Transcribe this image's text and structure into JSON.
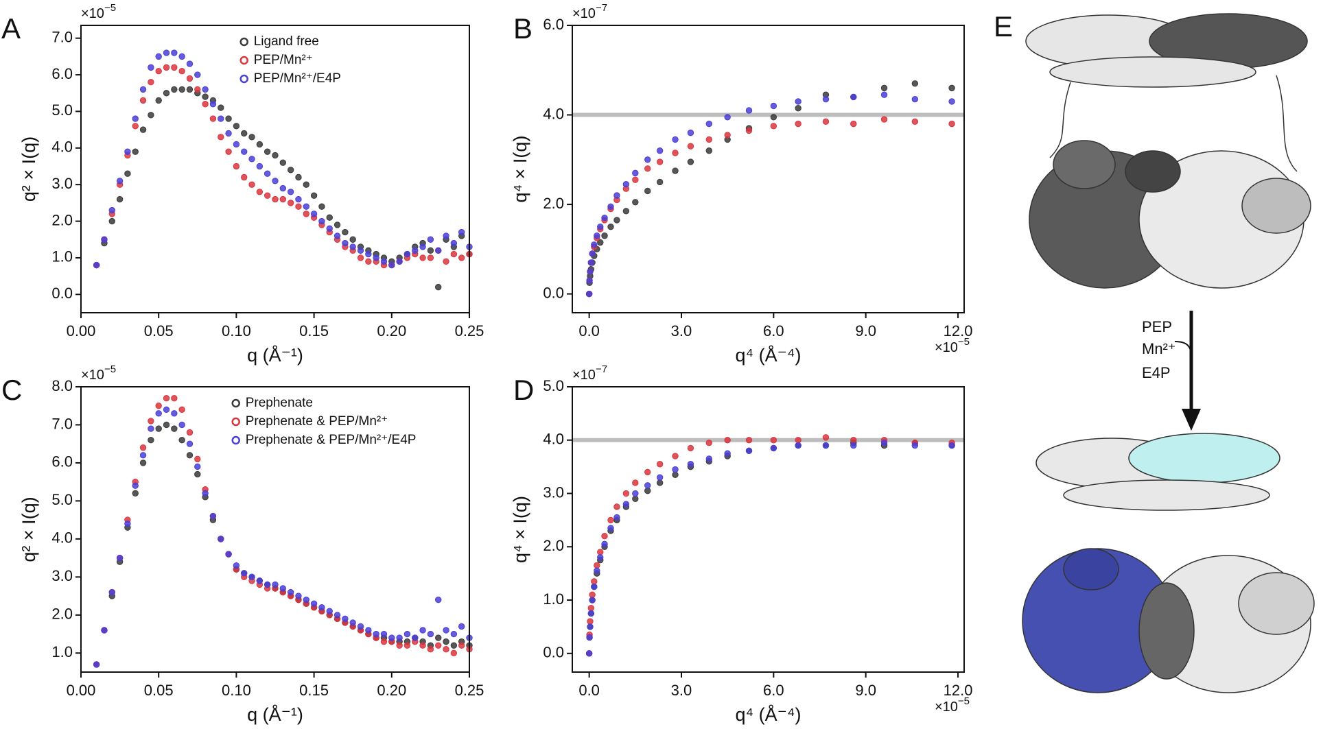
{
  "chart_data": [
    {
      "type": "scatter",
      "panel_label": "A",
      "x_label": "q (Å⁻¹)",
      "y_label": "q² × I(q)",
      "y_multiplier": {
        "base": "×10",
        "exponent": "−5"
      },
      "xlim": [
        0,
        0.25
      ],
      "ylim": [
        -0.5,
        7.35
      ],
      "xticks": [
        {
          "value": 0,
          "label": "0.00"
        },
        {
          "value": 0.05,
          "label": "0.05"
        },
        {
          "value": 0.1,
          "label": "0.10"
        },
        {
          "value": 0.15,
          "label": "0.15"
        },
        {
          "value": 0.2,
          "label": "0.20"
        },
        {
          "value": 0.25,
          "label": "0.25"
        }
      ],
      "yticks": [
        {
          "value": 0,
          "label": "0.0"
        },
        {
          "value": 1,
          "label": "1.0"
        },
        {
          "value": 2,
          "label": "2.0"
        },
        {
          "value": 3,
          "label": "3.0"
        },
        {
          "value": 4,
          "label": "4.0"
        },
        {
          "value": 5,
          "label": "5.0"
        },
        {
          "value": 6,
          "label": "6.0"
        },
        {
          "value": 7,
          "label": "7.0"
        }
      ],
      "legend": "upper center",
      "x": [
        0.01,
        0.015,
        0.02,
        0.025,
        0.03,
        0.035,
        0.04,
        0.045,
        0.05,
        0.055,
        0.06,
        0.065,
        0.07,
        0.075,
        0.08,
        0.085,
        0.09,
        0.095,
        0.1,
        0.105,
        0.11,
        0.115,
        0.12,
        0.125,
        0.13,
        0.135,
        0.14,
        0.145,
        0.15,
        0.155,
        0.16,
        0.165,
        0.17,
        0.175,
        0.18,
        0.185,
        0.19,
        0.195,
        0.2,
        0.205,
        0.21,
        0.215,
        0.22,
        0.225,
        0.23,
        0.235,
        0.24,
        0.245,
        0.25
      ],
      "series": [
        {
          "name": "Ligand free",
          "color": "#3a3a3a",
          "values": [
            0.8,
            1.4,
            2.0,
            2.6,
            3.3,
            3.9,
            4.5,
            4.9,
            5.3,
            5.5,
            5.6,
            5.6,
            5.6,
            5.5,
            5.4,
            5.3,
            5.1,
            4.8,
            4.6,
            4.4,
            4.3,
            4.1,
            3.9,
            3.8,
            3.6,
            3.4,
            3.2,
            3.0,
            2.7,
            2.4,
            2.1,
            1.9,
            1.7,
            1.5,
            1.3,
            1.2,
            1.1,
            1.0,
            0.9,
            1.0,
            1.1,
            1.3,
            1.4,
            1.2,
            0.2,
            1.5,
            1.3,
            1.6,
            1.1
          ]
        },
        {
          "name": "PEP/Mn²⁺",
          "color": "#d9363e",
          "values": [
            0.8,
            1.5,
            2.2,
            3.0,
            3.8,
            4.6,
            5.3,
            5.8,
            6.1,
            6.2,
            6.2,
            6.1,
            5.9,
            5.6,
            5.2,
            4.8,
            4.3,
            3.9,
            3.5,
            3.2,
            3.0,
            2.8,
            2.7,
            2.6,
            2.6,
            2.5,
            2.4,
            2.2,
            2.1,
            1.9,
            1.7,
            1.5,
            1.3,
            1.2,
            1.0,
            0.9,
            0.9,
            0.8,
            0.8,
            0.9,
            1.0,
            1.1,
            1.0,
            1.0,
            1.2,
            0.9,
            1.1,
            1.0,
            1.1
          ]
        },
        {
          "name": "PEP/Mn²⁺/E4P",
          "color": "#4a3fd6",
          "values": [
            0.8,
            1.5,
            2.3,
            3.1,
            3.9,
            4.8,
            5.6,
            6.2,
            6.5,
            6.6,
            6.6,
            6.5,
            6.3,
            6.0,
            5.6,
            5.2,
            4.8,
            4.4,
            4.1,
            3.9,
            3.7,
            3.5,
            3.3,
            3.1,
            2.9,
            2.8,
            2.6,
            2.4,
            2.2,
            2.0,
            1.8,
            1.6,
            1.4,
            1.3,
            1.2,
            1.1,
            1.0,
            0.9,
            0.8,
            0.9,
            1.1,
            1.2,
            1.3,
            1.5,
            1.2,
            1.6,
            1.4,
            1.7,
            1.3
          ]
        }
      ]
    },
    {
      "type": "scatter",
      "panel_label": "B",
      "x_label": "q⁴ (Å⁻⁴)",
      "y_label": "q⁴ × I(q)",
      "y_multiplier": {
        "base": "×10",
        "exponent": "−7"
      },
      "x_multiplier": {
        "base": "×10",
        "exponent": "−5"
      },
      "xlim": [
        -0.55,
        12.2
      ],
      "ylim": [
        -0.42,
        6.0
      ],
      "xticks": [
        {
          "value": 0,
          "label": "0.0"
        },
        {
          "value": 3,
          "label": "3.0"
        },
        {
          "value": 6,
          "label": "6.0"
        },
        {
          "value": 9,
          "label": "9.0"
        },
        {
          "value": 12,
          "label": "12.0"
        }
      ],
      "yticks": [
        {
          "value": 0,
          "label": "0.0"
        },
        {
          "value": 2,
          "label": "2.0"
        },
        {
          "value": 4,
          "label": "4.0"
        },
        {
          "value": 6,
          "label": "6.0"
        }
      ],
      "reference_line": 4.0,
      "x": [
        0,
        0.01,
        0.03,
        0.06,
        0.1,
        0.16,
        0.25,
        0.36,
        0.5,
        0.7,
        0.9,
        1.2,
        1.5,
        1.9,
        2.3,
        2.8,
        3.3,
        3.9,
        4.5,
        5.2,
        6.0,
        6.8,
        7.7,
        8.6,
        9.6,
        10.6,
        11.8
      ],
      "series": [
        {
          "color": "#3a3a3a",
          "values": [
            0,
            0.25,
            0.4,
            0.55,
            0.7,
            0.85,
            1.0,
            1.15,
            1.3,
            1.5,
            1.65,
            1.85,
            2.05,
            2.3,
            2.5,
            2.75,
            2.95,
            3.2,
            3.45,
            3.7,
            3.95,
            4.15,
            4.45,
            4.4,
            4.6,
            4.7,
            4.6
          ]
        },
        {
          "color": "#d9363e",
          "values": [
            0,
            0.3,
            0.5,
            0.7,
            0.9,
            1.05,
            1.25,
            1.45,
            1.65,
            1.9,
            2.1,
            2.35,
            2.55,
            2.8,
            2.95,
            3.15,
            3.3,
            3.45,
            3.55,
            3.65,
            3.75,
            3.8,
            3.85,
            3.8,
            3.9,
            3.85,
            3.8
          ]
        },
        {
          "color": "#4a3fd6",
          "values": [
            0,
            0.3,
            0.5,
            0.7,
            0.9,
            1.1,
            1.3,
            1.5,
            1.7,
            1.95,
            2.2,
            2.45,
            2.7,
            3.0,
            3.2,
            3.45,
            3.6,
            3.8,
            3.95,
            4.1,
            4.2,
            4.3,
            4.35,
            4.4,
            4.45,
            4.35,
            4.3
          ]
        }
      ]
    },
    {
      "type": "scatter",
      "panel_label": "C",
      "x_label": "q (Å⁻¹)",
      "y_label": "q² × I(q)",
      "y_multiplier": {
        "base": "×10",
        "exponent": "−5"
      },
      "xlim": [
        0,
        0.25
      ],
      "ylim": [
        0.5,
        8.0
      ],
      "xticks": [
        {
          "value": 0,
          "label": "0.00"
        },
        {
          "value": 0.05,
          "label": "0.05"
        },
        {
          "value": 0.1,
          "label": "0.10"
        },
        {
          "value": 0.15,
          "label": "0.15"
        },
        {
          "value": 0.2,
          "label": "0.20"
        },
        {
          "value": 0.25,
          "label": "0.25"
        }
      ],
      "yticks": [
        {
          "value": 1,
          "label": "1.0"
        },
        {
          "value": 2,
          "label": "2.0"
        },
        {
          "value": 3,
          "label": "3.0"
        },
        {
          "value": 4,
          "label": "4.0"
        },
        {
          "value": 5,
          "label": "5.0"
        },
        {
          "value": 6,
          "label": "6.0"
        },
        {
          "value": 7,
          "label": "7.0"
        },
        {
          "value": 8,
          "label": "8.0"
        }
      ],
      "legend": "upper center",
      "x": [
        0.01,
        0.015,
        0.02,
        0.025,
        0.03,
        0.035,
        0.04,
        0.045,
        0.05,
        0.055,
        0.06,
        0.065,
        0.07,
        0.075,
        0.08,
        0.085,
        0.09,
        0.095,
        0.1,
        0.105,
        0.11,
        0.115,
        0.12,
        0.125,
        0.13,
        0.135,
        0.14,
        0.145,
        0.15,
        0.155,
        0.16,
        0.165,
        0.17,
        0.175,
        0.18,
        0.185,
        0.19,
        0.195,
        0.2,
        0.205,
        0.21,
        0.215,
        0.22,
        0.225,
        0.23,
        0.235,
        0.24,
        0.245,
        0.25
      ],
      "series": [
        {
          "name": "Prephenate",
          "color": "#3a3a3a",
          "values": [
            0.7,
            1.6,
            2.5,
            3.4,
            4.3,
            5.2,
            6.0,
            6.6,
            6.9,
            7.0,
            6.9,
            6.6,
            6.2,
            5.7,
            5.1,
            4.5,
            4.0,
            3.6,
            3.2,
            3.1,
            3.0,
            2.9,
            2.8,
            2.7,
            2.6,
            2.5,
            2.4,
            2.3,
            2.2,
            2.1,
            2.0,
            1.9,
            1.8,
            1.7,
            1.6,
            1.5,
            1.4,
            1.4,
            1.3,
            1.3,
            1.3,
            1.4,
            1.3,
            1.2,
            1.4,
            1.3,
            1.2,
            1.3,
            1.2
          ]
        },
        {
          "name": "Prephenate & PEP/Mn²⁺",
          "color": "#d9363e",
          "values": [
            0.7,
            1.6,
            2.6,
            3.5,
            4.5,
            5.5,
            6.4,
            7.1,
            7.5,
            7.7,
            7.7,
            7.4,
            6.8,
            6.1,
            5.3,
            4.6,
            4.0,
            3.6,
            3.2,
            3.0,
            2.9,
            2.8,
            2.7,
            2.7,
            2.6,
            2.5,
            2.4,
            2.3,
            2.2,
            2.1,
            2.0,
            1.9,
            1.8,
            1.7,
            1.6,
            1.5,
            1.4,
            1.3,
            1.3,
            1.2,
            1.2,
            1.3,
            1.2,
            1.1,
            1.2,
            1.1,
            1.0,
            1.2,
            1.1
          ]
        },
        {
          "name": "Prephenate & PEP/Mn²⁺/E4P",
          "color": "#4a3fd6",
          "values": [
            0.7,
            1.6,
            2.6,
            3.5,
            4.4,
            5.4,
            6.2,
            6.9,
            7.3,
            7.4,
            7.3,
            7.0,
            6.5,
            5.9,
            5.2,
            4.6,
            4.0,
            3.6,
            3.3,
            3.1,
            3.0,
            2.9,
            2.8,
            2.8,
            2.7,
            2.6,
            2.5,
            2.4,
            2.3,
            2.2,
            2.1,
            2.0,
            1.9,
            1.8,
            1.7,
            1.6,
            1.5,
            1.5,
            1.4,
            1.4,
            1.5,
            1.4,
            1.6,
            1.5,
            2.4,
            1.6,
            1.5,
            1.7,
            1.4
          ]
        }
      ]
    },
    {
      "type": "scatter",
      "panel_label": "D",
      "x_label": "q⁴ (Å⁻⁴)",
      "y_label": "q⁴ × I(q)",
      "y_multiplier": {
        "base": "×10",
        "exponent": "−7"
      },
      "x_multiplier": {
        "base": "×10",
        "exponent": "−5"
      },
      "xlim": [
        -0.55,
        12.2
      ],
      "ylim": [
        -0.35,
        5.0
      ],
      "xticks": [
        {
          "value": 0,
          "label": "0.0"
        },
        {
          "value": 3,
          "label": "3.0"
        },
        {
          "value": 6,
          "label": "6.0"
        },
        {
          "value": 9,
          "label": "9.0"
        },
        {
          "value": 12,
          "label": "12.0"
        }
      ],
      "yticks": [
        {
          "value": 0,
          "label": "0.0"
        },
        {
          "value": 1,
          "label": "1.0"
        },
        {
          "value": 2,
          "label": "2.0"
        },
        {
          "value": 3,
          "label": "3.0"
        },
        {
          "value": 4,
          "label": "4.0"
        },
        {
          "value": 5,
          "label": "5.0"
        }
      ],
      "reference_line": 4.0,
      "x": [
        0,
        0.01,
        0.03,
        0.06,
        0.1,
        0.16,
        0.25,
        0.36,
        0.5,
        0.7,
        0.9,
        1.2,
        1.5,
        1.9,
        2.3,
        2.8,
        3.3,
        3.9,
        4.5,
        5.2,
        6.0,
        6.8,
        7.7,
        8.6,
        9.6,
        10.6,
        11.8
      ],
      "series": [
        {
          "color": "#3a3a3a",
          "values": [
            0,
            0.3,
            0.5,
            0.75,
            1.0,
            1.25,
            1.5,
            1.75,
            2.0,
            2.3,
            2.5,
            2.75,
            2.9,
            3.05,
            3.2,
            3.35,
            3.5,
            3.6,
            3.7,
            3.8,
            3.85,
            3.9,
            3.9,
            3.95,
            3.9,
            3.95,
            3.9
          ]
        },
        {
          "color": "#d9363e",
          "values": [
            0,
            0.35,
            0.6,
            0.85,
            1.1,
            1.35,
            1.65,
            1.9,
            2.2,
            2.5,
            2.75,
            3.0,
            3.2,
            3.4,
            3.55,
            3.7,
            3.85,
            3.95,
            4.0,
            4.0,
            4.0,
            4.0,
            4.05,
            4.0,
            4.0,
            3.95,
            3.95
          ]
        },
        {
          "color": "#4a3fd6",
          "values": [
            0,
            0.3,
            0.5,
            0.75,
            1.0,
            1.25,
            1.55,
            1.8,
            2.05,
            2.35,
            2.55,
            2.8,
            3.0,
            3.15,
            3.3,
            3.45,
            3.55,
            3.65,
            3.75,
            3.8,
            3.85,
            3.9,
            3.9,
            3.9,
            3.95,
            3.9,
            3.9
          ]
        }
      ]
    }
  ],
  "panel_e": {
    "label": "E",
    "arrow_labels": [
      "PEP",
      "Mn²⁺",
      "E4P"
    ]
  }
}
